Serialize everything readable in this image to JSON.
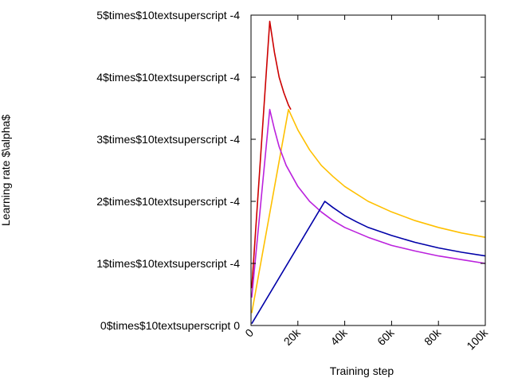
{
  "chart_data": {
    "type": "line",
    "title": "",
    "xlabel": "Training step",
    "ylabel": "Learning rate $\\alpha$",
    "xlim": [
      0,
      100000
    ],
    "ylim": [
      0,
      0.0005
    ],
    "grid": false,
    "legend": "none",
    "xticks": [
      {
        "value": 0,
        "label": "0"
      },
      {
        "value": 20000,
        "label": "20k"
      },
      {
        "value": 40000,
        "label": "40k"
      },
      {
        "value": 60000,
        "label": "60k"
      },
      {
        "value": 80000,
        "label": "80k"
      },
      {
        "value": 100000,
        "label": "100k"
      }
    ],
    "yticks": [
      {
        "value": 0,
        "label": "0$times$10textsuperscript 0"
      },
      {
        "value": 0.0001,
        "label": "1$times$10textsuperscript -4"
      },
      {
        "value": 0.0002,
        "label": "2$times$10textsuperscript -4"
      },
      {
        "value": 0.0003,
        "label": "3$times$10textsuperscript -4"
      },
      {
        "value": 0.0004,
        "label": "4$times$10textsuperscript -4"
      },
      {
        "value": 0.0005,
        "label": "5$times$10textsuperscript -4"
      }
    ],
    "series": [
      {
        "color": "#cc0000",
        "x": [
          300,
          8000,
          10000,
          12000,
          14000,
          16000,
          17000
        ],
        "y": [
          6e-05,
          0.00049,
          0.00044,
          0.0004,
          0.000375,
          0.000355,
          0.000348
        ]
      },
      {
        "color": "#ffc000",
        "x": [
          300,
          16000,
          20000,
          25000,
          30000,
          35000,
          40000,
          50000,
          60000,
          70000,
          80000,
          90000,
          100000
        ],
        "y": [
          2e-05,
          0.000348,
          0.000315,
          0.000283,
          0.000258,
          0.00024,
          0.000224,
          0.0002,
          0.000183,
          0.000169,
          0.000158,
          0.000149,
          0.000142
        ]
      },
      {
        "color": "#bb22dd",
        "x": [
          300,
          8000,
          10000,
          12000,
          15000,
          20000,
          25000,
          30000,
          35000,
          40000,
          50000,
          60000,
          70000,
          80000,
          90000,
          100000
        ],
        "y": [
          4.5e-05,
          0.000348,
          0.000316,
          0.000288,
          0.000258,
          0.000224,
          0.0002,
          0.000183,
          0.000169,
          0.000158,
          0.000142,
          0.000129,
          0.00012,
          0.000112,
          0.000106,
          0.0001
        ]
      },
      {
        "color": "#0000a8",
        "x": [
          300,
          31500,
          35000,
          40000,
          45000,
          50000,
          60000,
          70000,
          80000,
          90000,
          100000
        ],
        "y": [
          3e-06,
          0.0002,
          0.00019,
          0.000177,
          0.000167,
          0.000158,
          0.000145,
          0.000134,
          0.000125,
          0.000118,
          0.000112
        ]
      }
    ]
  }
}
